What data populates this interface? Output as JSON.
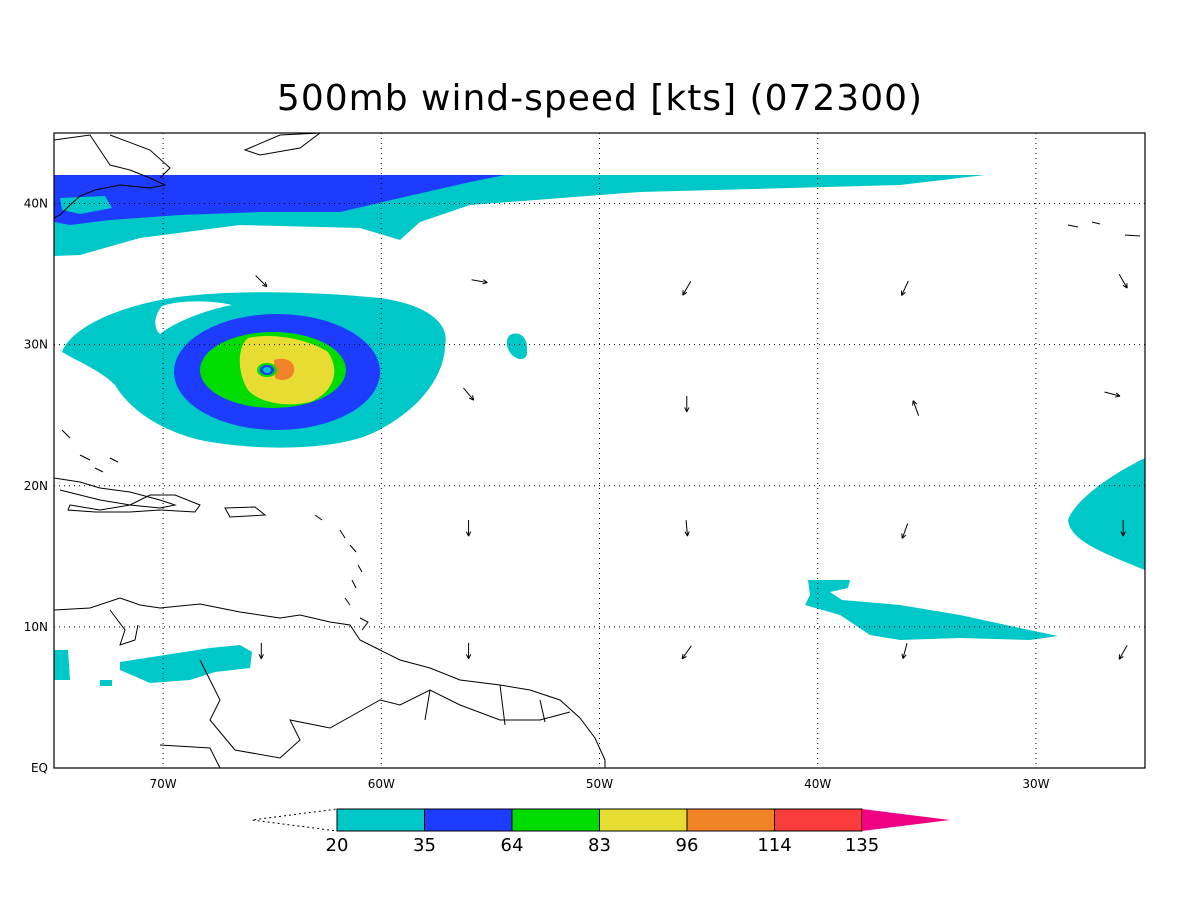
{
  "title": "500mb wind-speed [kts] (072300)",
  "map": {
    "lon_range": [
      -75,
      -25
    ],
    "lat_range": [
      0,
      45
    ],
    "lon_ticks": [
      {
        "value": -70,
        "label": "70W"
      },
      {
        "value": -60,
        "label": "60W"
      },
      {
        "value": -50,
        "label": "50W"
      },
      {
        "value": -40,
        "label": "40W"
      },
      {
        "value": -30,
        "label": "30W"
      }
    ],
    "lat_ticks": [
      {
        "value": 0,
        "label": "EQ"
      },
      {
        "value": 10,
        "label": "10N"
      },
      {
        "value": 20,
        "label": "20N"
      },
      {
        "value": 30,
        "label": "30N"
      },
      {
        "value": 40,
        "label": "40N"
      }
    ],
    "grid": "dotted"
  },
  "colorbar": {
    "thresholds": [
      "20",
      "35",
      "64",
      "83",
      "96",
      "114",
      "135"
    ],
    "colors": [
      "#00c8c8",
      "#1e3cff",
      "#00dc00",
      "#e6dc32",
      "#f08228",
      "#fa3c3c",
      "#f00082"
    ],
    "below_color": "#ffffff",
    "above_color": "#f00082"
  },
  "chart_data": {
    "type": "heatmap",
    "title": "500mb wind-speed [kts] (072300)",
    "variable": "500mb wind-speed",
    "units": "kts",
    "features": [
      {
        "name": "hurricane",
        "center_lon": -65,
        "center_lat": 28,
        "max_level": "96-114"
      },
      {
        "name": "jet",
        "lat": 40,
        "lon_start": -75,
        "lon_end": -32,
        "max_level": "35-64"
      }
    ],
    "wind_vectors": [
      {
        "lon": -65.5,
        "lat": 34.5,
        "dir": 315
      },
      {
        "lon": -55.5,
        "lat": 34.5,
        "dir": 350
      },
      {
        "lon": -46,
        "lat": 34,
        "dir": 240
      },
      {
        "lon": -36,
        "lat": 34,
        "dir": 245
      },
      {
        "lon": -26,
        "lat": 34.5,
        "dir": 300
      },
      {
        "lon": -56,
        "lat": 26.5,
        "dir": 310
      },
      {
        "lon": -46,
        "lat": 25.8,
        "dir": 270
      },
      {
        "lon": -35.5,
        "lat": 25.5,
        "dir": 110
      },
      {
        "lon": -26.5,
        "lat": 26.5,
        "dir": 345
      },
      {
        "lon": -56,
        "lat": 17,
        "dir": 270
      },
      {
        "lon": -46,
        "lat": 17,
        "dir": 275
      },
      {
        "lon": -36,
        "lat": 16.8,
        "dir": 250
      },
      {
        "lon": -26,
        "lat": 17,
        "dir": 270
      },
      {
        "lon": -65.5,
        "lat": 8.3,
        "dir": 270
      },
      {
        "lon": -56,
        "lat": 8.3,
        "dir": 270
      },
      {
        "lon": -46,
        "lat": 8.2,
        "dir": 235
      },
      {
        "lon": -36,
        "lat": 8.3,
        "dir": 255
      },
      {
        "lon": -26,
        "lat": 8.2,
        "dir": 240
      }
    ]
  }
}
